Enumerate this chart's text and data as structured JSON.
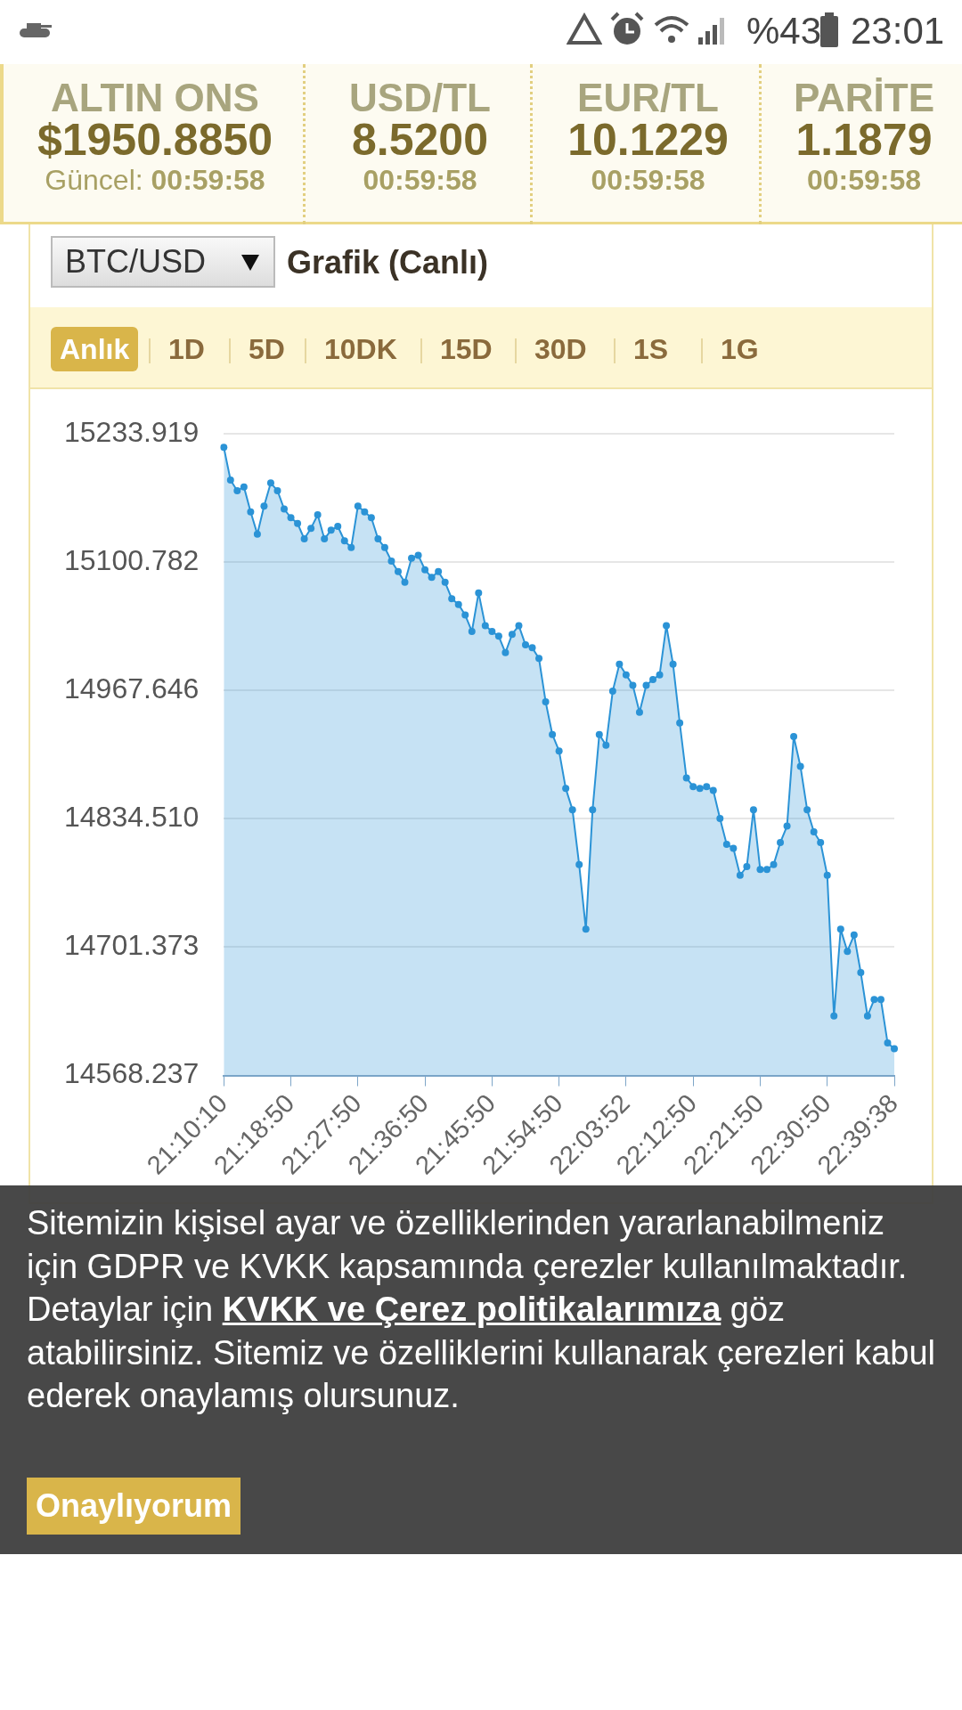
{
  "chart_data": {
    "type": "area",
    "title": "Grafik (Canlı)",
    "subtitle": "BTC/USD",
    "categories": [
      "21:10:10",
      null,
      null,
      null,
      null,
      null,
      null,
      null,
      null,
      null,
      "21:18:50",
      null,
      null,
      null,
      null,
      null,
      null,
      null,
      null,
      null,
      "21:27:50",
      null,
      null,
      null,
      null,
      null,
      null,
      null,
      null,
      null,
      "21:36:50",
      null,
      null,
      null,
      null,
      null,
      null,
      null,
      null,
      null,
      "21:45:50",
      null,
      null,
      null,
      null,
      null,
      null,
      null,
      null,
      null,
      "21:54:50",
      null,
      null,
      null,
      null,
      null,
      null,
      null,
      null,
      null,
      "22:03:52",
      null,
      null,
      null,
      null,
      null,
      null,
      null,
      null,
      null,
      "22:12:50",
      null,
      null,
      null,
      null,
      null,
      null,
      null,
      null,
      null,
      "22:21:50",
      null,
      null,
      null,
      null,
      null,
      null,
      null,
      null,
      null,
      "22:30:50",
      null,
      null,
      null,
      null,
      null,
      null,
      null,
      null,
      null,
      "22:39:38"
    ],
    "series": [
      {
        "color": "#2b93d6",
        "values": [
          15220,
          15186,
          15175,
          15179,
          15153,
          15130,
          15159,
          15183,
          15175,
          15156,
          15147,
          15141,
          15125,
          15136,
          15150,
          15125,
          15134,
          15138,
          15123,
          15116,
          15159,
          15153,
          15147,
          15125,
          15116,
          15102,
          15091,
          15080,
          15105,
          15108,
          15093,
          15085,
          15091,
          15080,
          15063,
          15057,
          15046,
          15029,
          15069,
          15035,
          15029,
          15024,
          15007,
          15026,
          15035,
          15015,
          15012,
          15001,
          14956,
          14922,
          14905,
          14866,
          14844,
          14787,
          14720,
          14844,
          14922,
          14911,
          14967,
          14995,
          14984,
          14973,
          14945,
          14973,
          14979,
          14984,
          15035,
          14995,
          14934,
          14877,
          14868,
          14866,
          14868,
          14864,
          14835,
          14808,
          14804,
          14776,
          14785,
          14844,
          14782,
          14782,
          14787,
          14810,
          14827,
          14920,
          14889,
          14844,
          14821,
          14810,
          14776,
          14630,
          14720,
          14697,
          14714,
          14675,
          14630,
          14647,
          14647,
          14602,
          14596
        ]
      }
    ],
    "ylim": [
      14568.237,
      15233.919
    ],
    "yticks": [
      14568.237,
      14701.373,
      {
        "value": 14834.51,
        "label": "14834.510"
      },
      14967.646,
      15100.782,
      15233.919
    ],
    "grid": "y",
    "marker": "circle",
    "annotations": [
      "23:01",
      "%43",
      "ALTIN ONS",
      "$1950.8850",
      "Güncel:",
      "00:59:58",
      "USD/TL",
      "8.5200",
      "00:59:58",
      "EUR/TL",
      "10.1229",
      "00:59:58",
      "PARİTE",
      "1.1879",
      "00:59:58",
      "Anlık",
      "1D",
      "5D",
      "10DK",
      "15D",
      "30D",
      "1S",
      "1G",
      "Sitemizin kişisel ayar ve özelliklerinden yararlanabilmeniz için GDPR ve KVKK kapsamında çerezler kullanılmaktadır. Detaylar için ",
      "KVKK ve Çerez politikalarımıza",
      " göz atabilirsiniz. Sitemiz ve özelliklerini kullanarak çerezleri kabul ederek onaylamış olursunuz.",
      "Onaylıyorum"
    ]
  }
}
